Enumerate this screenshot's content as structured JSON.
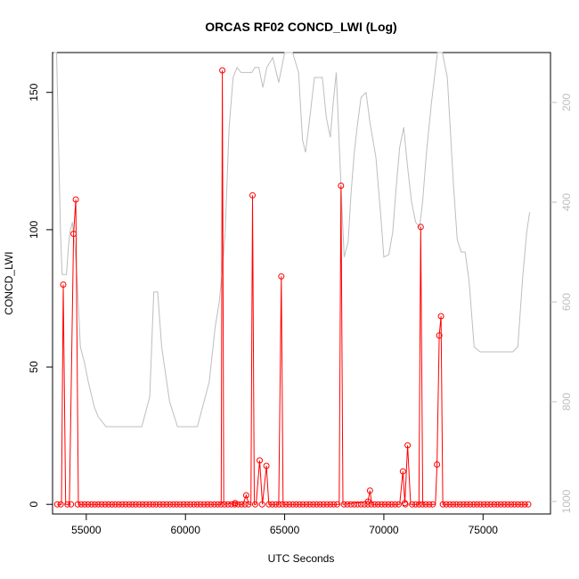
{
  "chart_data": {
    "type": "line",
    "title": "ORCAS RF02 CONCD_LWI (Log)",
    "xlabel": "UTC Seconds",
    "ylabel": "CONCD_LWI",
    "xlim": [
      53300,
      78400
    ],
    "ylim": [
      -3.5,
      164.5
    ],
    "x_ticks": [
      55000,
      60000,
      65000,
      70000,
      75000
    ],
    "y_ticks": [
      0,
      50,
      100,
      150
    ],
    "y2_ticks": [
      200,
      400,
      600,
      800,
      1000
    ],
    "y2_reversed": true,
    "y2_lim": [
      100,
      1025
    ],
    "grid": false,
    "colors": {
      "primary": "#ff0000",
      "secondary": "#bebebe"
    },
    "series": [
      {
        "points": [
          [
            53540,
            0
          ],
          [
            53750,
            0
          ],
          [
            53840,
            80
          ],
          [
            53960,
            0
          ],
          [
            54150,
            0
          ],
          [
            54360,
            98.5
          ],
          [
            54470,
            111
          ],
          [
            54600,
            0
          ],
          [
            54780,
            0
          ],
          [
            61800,
            0
          ],
          [
            61860,
            158
          ],
          [
            61930,
            0
          ],
          [
            62500,
            0.5
          ],
          [
            62700,
            0
          ],
          [
            62900,
            0
          ],
          [
            63060,
            3.3
          ],
          [
            63200,
            0
          ],
          [
            63300,
            0
          ],
          [
            63380,
            112.5
          ],
          [
            63470,
            0
          ],
          [
            63560,
            0
          ],
          [
            63740,
            16
          ],
          [
            63880,
            0
          ],
          [
            64080,
            14
          ],
          [
            64200,
            0
          ],
          [
            64700,
            0
          ],
          [
            64830,
            83
          ],
          [
            64920,
            0
          ],
          [
            67750,
            0
          ],
          [
            67840,
            116
          ],
          [
            67940,
            0
          ],
          [
            69200,
            1
          ],
          [
            69300,
            5
          ],
          [
            69400,
            0
          ],
          [
            70800,
            0
          ],
          [
            70960,
            12
          ],
          [
            71060,
            0.5
          ],
          [
            71200,
            21.5
          ],
          [
            71350,
            0
          ],
          [
            71770,
            0
          ],
          [
            71860,
            101
          ],
          [
            71960,
            0
          ],
          [
            72600,
            0
          ],
          [
            72680,
            14.5
          ],
          [
            72790,
            61.5
          ],
          [
            72880,
            68.5
          ],
          [
            72970,
            0
          ],
          [
            77280,
            0
          ]
        ]
      },
      {
        "points": [
          [
            53350,
            100
          ],
          [
            53500,
            100
          ],
          [
            53700,
            460
          ],
          [
            53780,
            545
          ],
          [
            54000,
            545
          ],
          [
            54100,
            490
          ],
          [
            54180,
            460
          ],
          [
            54300,
            440
          ],
          [
            54450,
            500
          ],
          [
            54550,
            560
          ],
          [
            54700,
            690
          ],
          [
            54900,
            720
          ],
          [
            55100,
            760
          ],
          [
            55400,
            810
          ],
          [
            55600,
            830
          ],
          [
            56000,
            850
          ],
          [
            57800,
            850
          ],
          [
            58200,
            790
          ],
          [
            58400,
            580
          ],
          [
            58600,
            580
          ],
          [
            58800,
            690
          ],
          [
            59200,
            800
          ],
          [
            59600,
            850
          ],
          [
            60600,
            850
          ],
          [
            60800,
            820
          ],
          [
            61200,
            760
          ],
          [
            61500,
            650
          ],
          [
            61700,
            600
          ],
          [
            61850,
            540
          ],
          [
            62000,
            460
          ],
          [
            62200,
            250
          ],
          [
            62400,
            150
          ],
          [
            62600,
            130
          ],
          [
            62800,
            140
          ],
          [
            63100,
            140
          ],
          [
            63350,
            140
          ],
          [
            63500,
            130
          ],
          [
            63700,
            130
          ],
          [
            63900,
            170
          ],
          [
            64100,
            130
          ],
          [
            64400,
            110
          ],
          [
            64700,
            160
          ],
          [
            65000,
            100
          ],
          [
            65400,
            100
          ],
          [
            65700,
            140
          ],
          [
            65900,
            275
          ],
          [
            66050,
            300
          ],
          [
            66300,
            220
          ],
          [
            66500,
            150
          ],
          [
            66900,
            150
          ],
          [
            67100,
            230
          ],
          [
            67300,
            270
          ],
          [
            67450,
            200
          ],
          [
            67600,
            140
          ],
          [
            67800,
            330
          ],
          [
            68000,
            510
          ],
          [
            68200,
            480
          ],
          [
            68350,
            380
          ],
          [
            68500,
            305
          ],
          [
            68650,
            250
          ],
          [
            68850,
            190
          ],
          [
            69100,
            180
          ],
          [
            69300,
            240
          ],
          [
            69600,
            310
          ],
          [
            69850,
            430
          ],
          [
            70000,
            510
          ],
          [
            70250,
            505
          ],
          [
            70450,
            460
          ],
          [
            70600,
            380
          ],
          [
            70800,
            290
          ],
          [
            71000,
            250
          ],
          [
            71200,
            330
          ],
          [
            71400,
            400
          ],
          [
            71600,
            440
          ],
          [
            71800,
            450
          ],
          [
            71950,
            400
          ],
          [
            72150,
            300
          ],
          [
            72400,
            200
          ],
          [
            72700,
            100
          ],
          [
            72950,
            100
          ],
          [
            73200,
            150
          ],
          [
            73500,
            360
          ],
          [
            73700,
            475
          ],
          [
            73900,
            500
          ],
          [
            74100,
            500
          ],
          [
            74300,
            560
          ],
          [
            74550,
            690
          ],
          [
            74850,
            700
          ],
          [
            76000,
            700
          ],
          [
            76500,
            700
          ],
          [
            76750,
            690
          ],
          [
            77000,
            550
          ],
          [
            77200,
            460
          ],
          [
            77350,
            420
          ]
        ]
      }
    ]
  }
}
